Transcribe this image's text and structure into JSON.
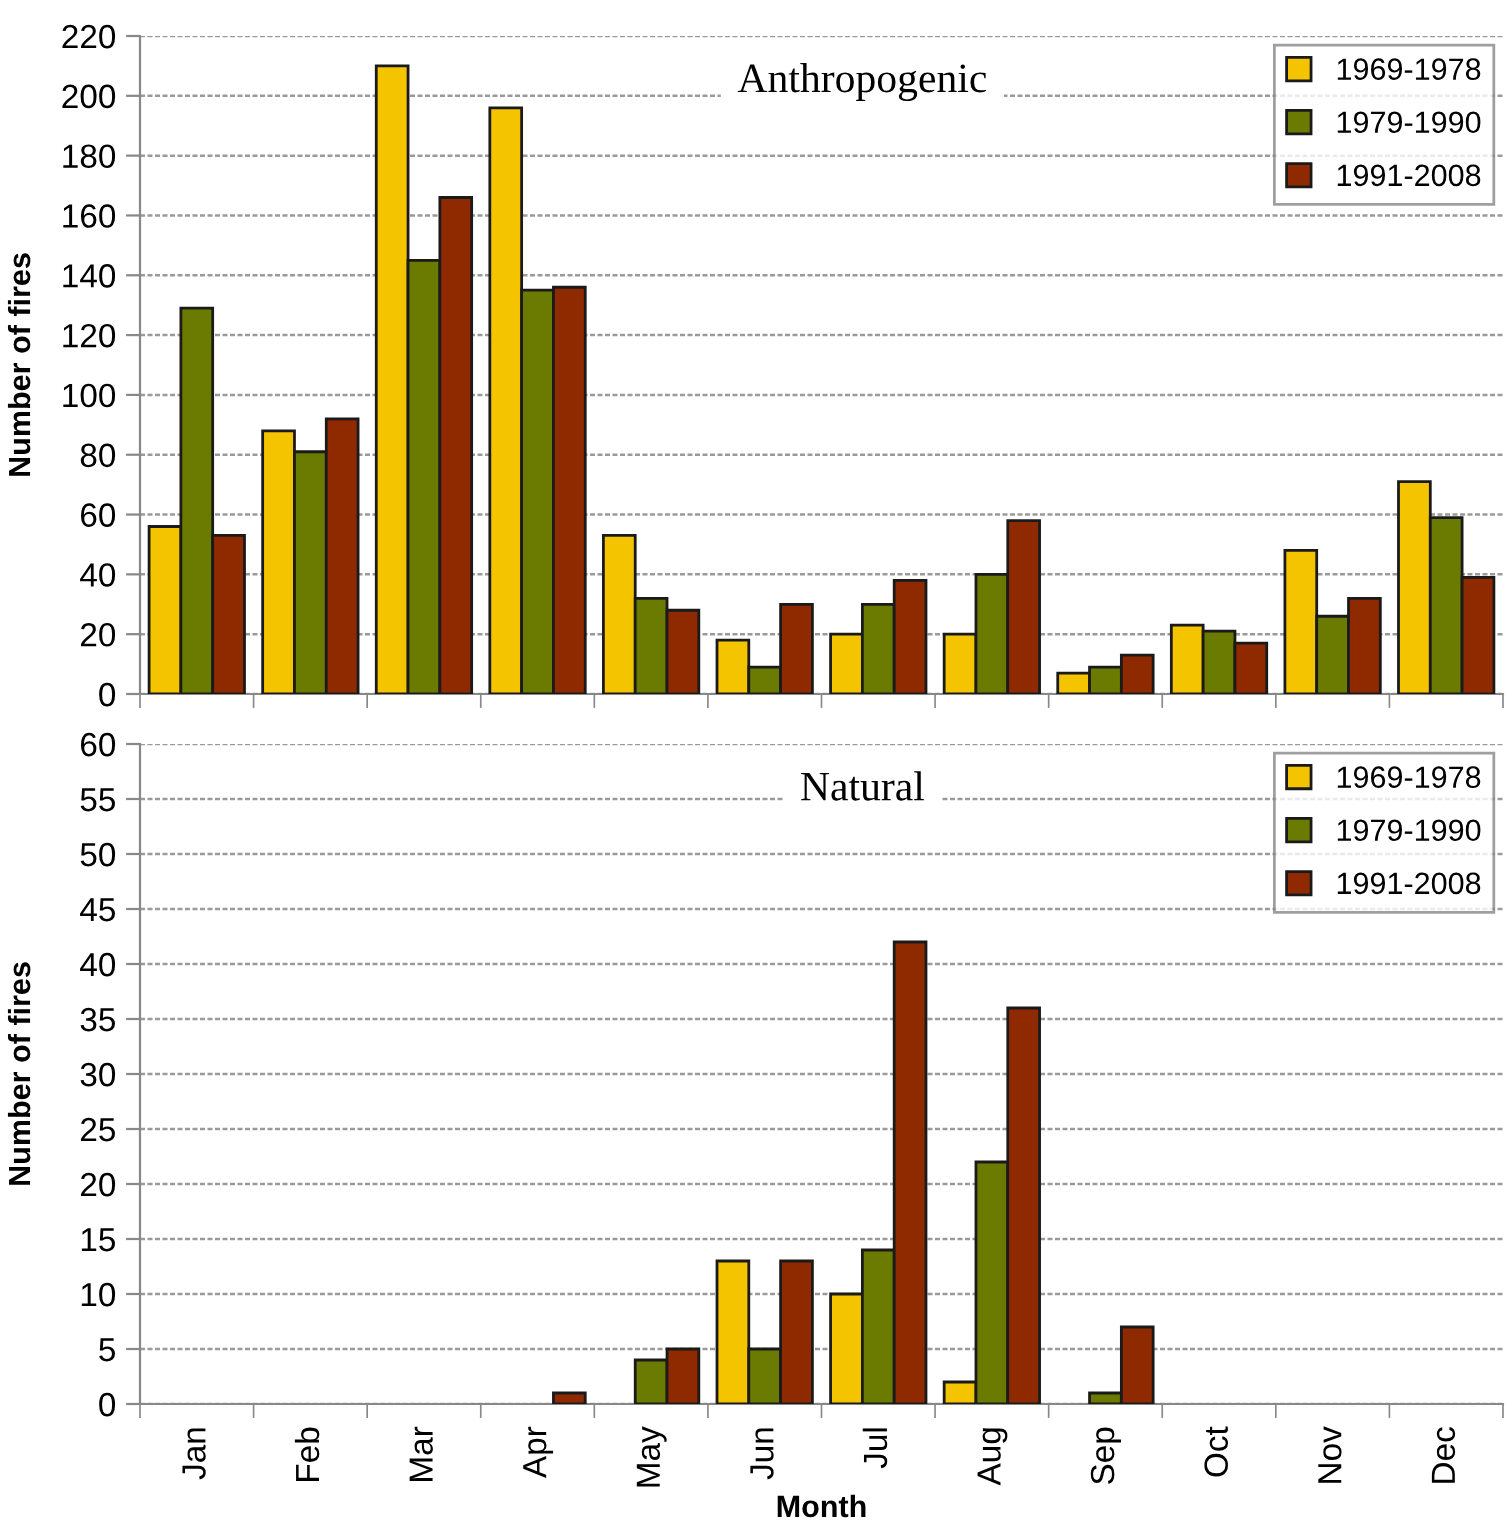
{
  "chart_data": [
    {
      "type": "bar",
      "title": "Anthropogenic",
      "ylabel": "Number of fires",
      "categories": [
        null,
        null,
        null,
        null,
        null,
        null,
        null,
        null,
        null,
        null,
        null,
        null
      ],
      "series": [
        {
          "name": "1969-1978",
          "color": "#f5c400",
          "values": [
            56,
            88,
            210,
            196,
            53,
            18,
            20,
            20,
            7,
            23,
            48,
            71
          ]
        },
        {
          "name": "1979-1990",
          "color": "#6b7a00",
          "values": [
            129,
            81,
            145,
            135,
            32,
            9,
            30,
            40,
            9,
            21,
            26,
            59
          ]
        },
        {
          "name": "1991-2008",
          "color": "#8f2a00",
          "values": [
            53,
            92,
            166,
            136,
            28,
            30,
            38,
            58,
            13,
            17,
            32,
            39
          ]
        }
      ],
      "ylim": [
        0,
        220
      ],
      "yticks": [
        0,
        20,
        40,
        60,
        80,
        100,
        120,
        140,
        160,
        180,
        200,
        220
      ],
      "grid": "y",
      "legend": "top right",
      "tick_labels": "y"
    },
    {
      "type": "bar",
      "title": "Natural",
      "ylabel": "Number of fires",
      "xlabel": "Month",
      "categories": [
        "Jan",
        "Feb",
        "Mar",
        "Apr",
        "May",
        "Jun",
        "Jul",
        "Aug",
        "Sep",
        "Oct",
        "Nov",
        "Dec"
      ],
      "series": [
        {
          "name": "1969-1978",
          "color": "#f5c400",
          "values": [
            null,
            null,
            null,
            null,
            null,
            13,
            10,
            2,
            null,
            null,
            null,
            null
          ]
        },
        {
          "name": "1979-1990",
          "color": "#6b7a00",
          "values": [
            null,
            null,
            null,
            null,
            4,
            5,
            14,
            22,
            1,
            null,
            null,
            null
          ]
        },
        {
          "name": "1991-2008",
          "color": "#8f2a00",
          "values": [
            null,
            null,
            null,
            1,
            5,
            13,
            42,
            36,
            7,
            null,
            null,
            null
          ]
        }
      ],
      "ylim": [
        0,
        60
      ],
      "yticks": [
        0,
        5,
        10,
        15,
        20,
        25,
        30,
        35,
        40,
        45,
        50,
        55,
        60
      ],
      "grid": "y",
      "legend": "top right"
    }
  ]
}
